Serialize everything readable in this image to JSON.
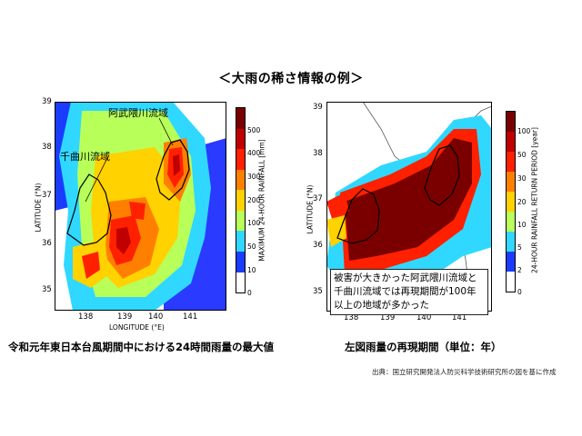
{
  "title": "＜大雨の稀さ情報の例＞",
  "left_map": {
    "basin_labels": [
      "阿武隈川流域",
      "千曲川流域"
    ],
    "lat_ticks": [
      "39",
      "38",
      "37",
      "36",
      "35"
    ],
    "lon_ticks": [
      "138",
      "139",
      "140",
      "141"
    ],
    "y_label": "LATITUDE (°N)",
    "x_label": "LONGITUDE (°E)",
    "colorbar_label": "MAXIMUM 24-HOUR RAINFALL [mm]",
    "colorbar_ticks": [
      "500",
      "400",
      "300",
      "200",
      "100",
      "50",
      "10",
      "0"
    ],
    "colorbar_colors": [
      "#7a0000",
      "#c00000",
      "#ff2000",
      "#ff8000",
      "#ffd200",
      "#b8ff5a",
      "#30d8ff",
      "#1a3cff",
      "#ffffff"
    ],
    "caption": "令和元年東日本台風期間中における24時間雨量の最大値"
  },
  "right_map": {
    "lat_ticks": [
      "39",
      "38",
      "37",
      "36",
      "35"
    ],
    "lon_ticks": [
      "138",
      "139",
      "140",
      "141"
    ],
    "y_label": "LATITUDE (°N)",
    "colorbar_label": "24-HOUR RAINFALL RETURN PERIOD [year]",
    "colorbar_ticks": [
      "100",
      "50",
      "30",
      "20",
      "10",
      "5",
      "2",
      "0"
    ],
    "colorbar_colors": [
      "#7a0000",
      "#c00000",
      "#ff2000",
      "#ff8000",
      "#ffd200",
      "#b8ff5a",
      "#30d8ff",
      "#1a3cff",
      "#ffffff"
    ],
    "note_lines": [
      "被害が大きかった阿武隈川流域と",
      "千曲川流域では再現期間が100年",
      "以上の地域が多かった"
    ],
    "caption": "左図雨量の再現期間（単位：年）"
  },
  "source": "出典：国立研究開発法人防災科学技術研究所の図を基に作成"
}
